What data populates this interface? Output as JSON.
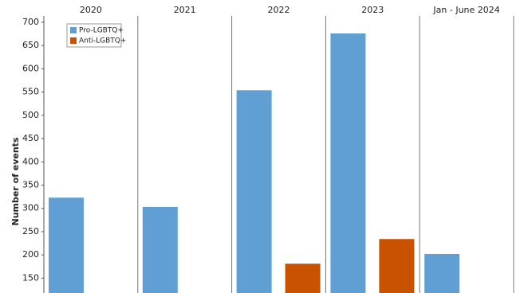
{
  "chart_data": {
    "type": "bar",
    "y_label": "Number of events",
    "categories": [
      "2020",
      "2021",
      "2022",
      "2023",
      "Jan - June 2024"
    ],
    "series": [
      {
        "name": "Pro-LGBTQ+",
        "color": "#5f9fd4",
        "values": [
          323,
          303,
          554,
          676,
          202
        ]
      },
      {
        "name": "Anti-LGBTQ+",
        "color": "#c85200",
        "values": [
          null,
          null,
          181,
          234,
          null
        ]
      }
    ],
    "ylim": [
      118,
      700
    ],
    "yticks": [
      150,
      200,
      250,
      300,
      350,
      400,
      450,
      500,
      550,
      600,
      650,
      700
    ]
  }
}
